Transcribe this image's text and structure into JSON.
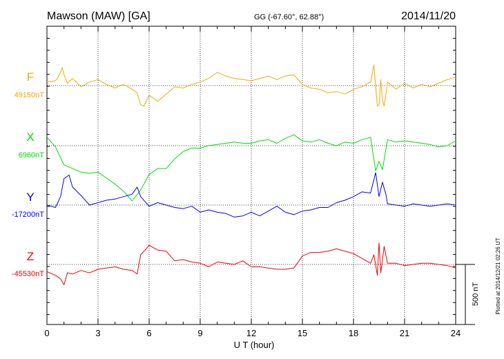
{
  "header": {
    "station": "Mawson (MAW)  [GA]",
    "coords": "GG (-67.60°,  62.88°)",
    "date": "2014/11/20"
  },
  "footer": {
    "plotted": "Plotted at 2014/12/21 02:26 UT"
  },
  "chart_data": {
    "type": "line",
    "title": "Mawson (MAW)  [GA]",
    "xlabel": "U T (hour)",
    "xlim": [
      0,
      24
    ],
    "xticks": [
      "0",
      "3",
      "6",
      "9",
      "12",
      "15",
      "18",
      "21",
      "24"
    ],
    "scale_bar_label": "500 nT",
    "scale_bar_nT": 500,
    "grid": "dotted",
    "series": [
      {
        "name": "F",
        "baseline_label": "49150nT",
        "baseline_nT": 49150,
        "color": "#f2a900",
        "x": [
          0,
          0.5,
          0.7,
          0.9,
          1.0,
          1.2,
          1.5,
          2,
          2.5,
          3,
          3.5,
          4,
          4.5,
          5,
          5.3,
          5.5,
          5.7,
          6,
          6.5,
          7,
          7.5,
          8,
          8.5,
          9,
          9.5,
          10,
          10.5,
          11,
          11.5,
          12,
          12.5,
          13,
          13.5,
          14,
          14.5,
          15,
          15.5,
          16,
          16.5,
          17,
          17.5,
          18,
          18.5,
          19,
          19.2,
          19.4,
          19.5,
          19.6,
          19.7,
          19.8,
          20,
          20.5,
          21,
          21.5,
          22,
          22.5,
          23,
          23.5,
          24
        ],
        "values": [
          49180,
          49190,
          49230,
          49300,
          49240,
          49170,
          49210,
          49140,
          49180,
          49200,
          49160,
          49130,
          49160,
          49120,
          49090,
          48990,
          48980,
          49070,
          49020,
          49080,
          49140,
          49130,
          49160,
          49180,
          49210,
          49260,
          49230,
          49210,
          49200,
          49190,
          49210,
          49230,
          49200,
          49230,
          49240,
          49160,
          49130,
          49120,
          49090,
          49100,
          49080,
          49120,
          49140,
          49180,
          49320,
          48980,
          48990,
          49200,
          49030,
          48980,
          49180,
          49120,
          49170,
          49130,
          49160,
          49140,
          49170,
          49200,
          49220
        ]
      },
      {
        "name": "X",
        "baseline_label": "6960nT",
        "baseline_nT": 6960,
        "color": "#00dd00",
        "x": [
          0,
          0.5,
          1.0,
          1.5,
          2,
          2.5,
          3,
          3.5,
          4,
          4.5,
          5,
          5.5,
          6,
          6.5,
          7,
          7.5,
          8,
          8.5,
          9,
          9.5,
          10,
          10.5,
          11,
          11.5,
          12,
          12.5,
          13,
          13.5,
          14,
          14.5,
          15,
          15.5,
          16,
          16.5,
          17,
          17.5,
          18,
          18.5,
          19,
          19.3,
          19.5,
          19.7,
          20,
          20.5,
          21,
          21.5,
          22,
          22.5,
          23,
          23.5,
          24
        ],
        "values": [
          7030,
          6950,
          6800,
          6770,
          6740,
          6730,
          6740,
          6690,
          6640,
          6580,
          6500,
          6590,
          6720,
          6770,
          6770,
          6850,
          6910,
          6940,
          6940,
          6960,
          6970,
          6980,
          6990,
          6980,
          6980,
          7000,
          7010,
          6980,
          7020,
          7050,
          7000,
          6990,
          7010,
          6980,
          6960,
          6990,
          6980,
          7010,
          7030,
          6750,
          6830,
          6760,
          7010,
          6990,
          7000,
          6990,
          6980,
          6970,
          6950,
          6960,
          7000
        ]
      },
      {
        "name": "Y",
        "baseline_label": "-17200nT",
        "baseline_nT": -17200,
        "color": "#0000ee",
        "x": [
          0,
          0.5,
          0.8,
          1.0,
          1.3,
          1.5,
          2,
          2.5,
          3,
          3.5,
          4,
          4.5,
          5,
          5.3,
          5.5,
          6,
          6.5,
          7,
          7.5,
          8,
          8.5,
          9,
          9.5,
          10,
          10.5,
          11,
          11.5,
          12,
          12.5,
          13,
          13.5,
          14,
          14.5,
          15,
          15.5,
          16,
          16.5,
          17,
          17.5,
          18,
          18.5,
          19,
          19.3,
          19.5,
          19.7,
          19.9,
          20,
          20.5,
          21,
          21.5,
          22,
          22.5,
          23,
          23.5,
          24
        ],
        "values": [
          -17200,
          -17220,
          -17130,
          -16980,
          -16950,
          -17050,
          -17120,
          -17200,
          -17180,
          -17160,
          -17150,
          -17130,
          -17110,
          -17050,
          -17130,
          -17210,
          -17180,
          -17200,
          -17220,
          -17230,
          -17210,
          -17260,
          -17240,
          -17260,
          -17270,
          -17300,
          -17290,
          -17260,
          -17290,
          -17250,
          -17210,
          -17260,
          -17280,
          -17250,
          -17240,
          -17220,
          -17220,
          -17180,
          -17160,
          -17130,
          -17090,
          -17100,
          -16930,
          -17130,
          -17010,
          -17110,
          -17190,
          -17200,
          -17210,
          -17190,
          -17200,
          -17210,
          -17200,
          -17190,
          -17200
        ]
      },
      {
        "name": "Z",
        "baseline_label": "-45530nT",
        "baseline_nT": -45530,
        "color": "#ee0000",
        "x": [
          0,
          0.5,
          0.8,
          1.0,
          1.2,
          1.5,
          2,
          2.5,
          3,
          3.5,
          4,
          4.5,
          5,
          5.3,
          5.5,
          5.7,
          6,
          6.5,
          7,
          7.5,
          8,
          8.5,
          9,
          9.5,
          10,
          10.5,
          11,
          11.5,
          12,
          12.5,
          13,
          13.5,
          14,
          14.5,
          15,
          15.5,
          16,
          16.5,
          17,
          17.5,
          18,
          18.5,
          19,
          19.2,
          19.4,
          19.5,
          19.6,
          19.8,
          20,
          20.5,
          21,
          21.5,
          22,
          22.5,
          23,
          23.5,
          24
        ],
        "values": [
          -45590,
          -45620,
          -45650,
          -45700,
          -45600,
          -45610,
          -45580,
          -45600,
          -45570,
          -45560,
          -45550,
          -45570,
          -45580,
          -45610,
          -45450,
          -45420,
          -45370,
          -45410,
          -45420,
          -45500,
          -45490,
          -45510,
          -45520,
          -45550,
          -45510,
          -45520,
          -45530,
          -45500,
          -45550,
          -45550,
          -45560,
          -45570,
          -45570,
          -45560,
          -45460,
          -45430,
          -45430,
          -45420,
          -45400,
          -45420,
          -45440,
          -45480,
          -45520,
          -45450,
          -45620,
          -45350,
          -45600,
          -45380,
          -45520,
          -45520,
          -45540,
          -45530,
          -45520,
          -45520,
          -45530,
          -45540,
          -45560
        ]
      }
    ]
  }
}
